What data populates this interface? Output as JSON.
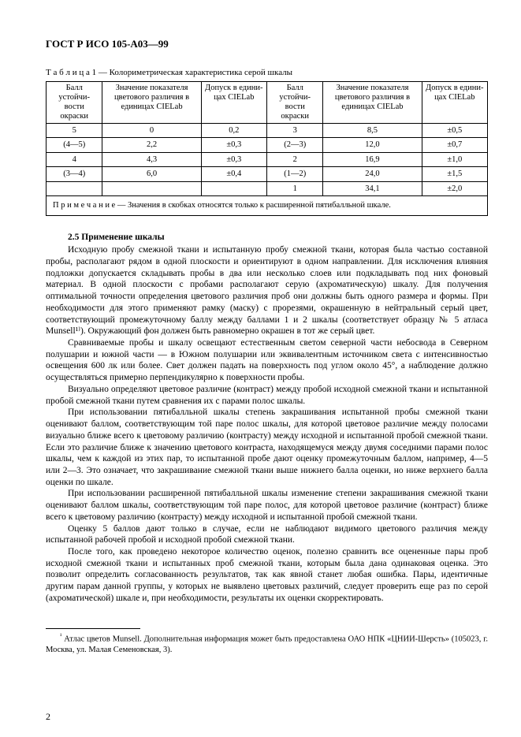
{
  "header": {
    "code": "ГОСТ Р ИСО 105-А03—99"
  },
  "table": {
    "caption_prefix": "Т а б л и ц а 1",
    "caption_dash": " — ",
    "caption_text": "Колориметрическая характеристика серой шкалы",
    "headers": {
      "c1": "Балл устойчи-\nвости окраски",
      "c2": "Значение показателя\nцветового различия в\nединицах CIELab",
      "c3": "Допуск в едини-\nцах CIELab",
      "c4": "Балл устойчи-\nвости окраски",
      "c5": "Значение показателя\nцветового различия в\nединицах CIELab",
      "c6": "Допуск в едини-\nцах CIELab"
    },
    "rows": [
      [
        "5",
        "0",
        "0,2",
        "3",
        "8,5",
        "±0,5"
      ],
      [
        "(4—5)",
        "2,2",
        "±0,3",
        "(2—3)",
        "12,0",
        "±0,7"
      ],
      [
        "4",
        "4,3",
        "±0,3",
        "2",
        "16,9",
        "±1,0"
      ],
      [
        "(3—4)",
        "6,0",
        "±0,4",
        "(1—2)",
        "24,0",
        "±1,5"
      ],
      [
        "",
        "",
        "",
        "1",
        "34,1",
        "±2,0"
      ]
    ],
    "note_prefix": "П р и м е ч а н и е",
    "note_text": " — Значения в скобках относятся только к расширенной пятибалльной шкале."
  },
  "section": {
    "title": "2.5 Применение шкалы"
  },
  "paragraphs": {
    "p1": "Исходную пробу смежной ткани и испытанную пробу смежной ткани, которая была частью составной пробы, располагают рядом в одной плоскости и ориентируют в одном направлении. Для исключения влияния подложки допускается складывать пробы в два или несколько слоев или подкладывать под них фоновый материал. В одной плоскости с пробами располагают серую (ахроматическую) шкалу. Для получения оптимальной точности определения цветового различия проб они должны быть одного размера и формы. При необходимости для этого применяют рамку (маску) с прорезями, окрашенную в нейтральный серый цвет, соответствующий промежуточному баллу между баллами 1 и 2 шкалы (соответствует образцу № 5 атласа Munsell¹⁾). Окружающий фон должен быть равномерно окрашен в тот же серый цвет.",
    "p2": "Сравниваемые пробы и шкалу освещают естественным светом северной части небосвода в Северном полушарии и южной части — в Южном полушарии или эквивалентным источником света с интенсивностью освещения 600 лк или более. Свет должен падать на поверхность под углом около 45°, а наблюдение должно осуществляться примерно перпендикулярно к поверхности пробы.",
    "p3": "Визуально определяют цветовое различие (контраст) между пробой исходной смежной ткани и испытанной пробой смежной ткани путем сравнения их с парами полос шкалы.",
    "p4": "При использовании пятибалльной шкалы степень закрашивания испытанной пробы смежной ткани оценивают баллом, соответствующим той паре полос шкалы, для которой цветовое различие между полосами визуально ближе всего к цветовому различию (контрасту) между исходной и испытанной пробой смежной ткани. Если это различие ближе к значению цветового контраста, находящемуся между двумя соседними парами полос шкалы, чем к каждой из этих пар, то испытанной пробе дают оценку промежуточным баллом, например, 4—5 или 2—3. Это означает, что закрашивание смежной ткани выше нижнего балла оценки, но ниже верхнего балла оценки по шкале.",
    "p5": "При использовании расширенной пятибалльной шкалы изменение степени закрашивания смежной ткани оценивают баллом шкалы, соответствующим той паре полос, для которой цветовое различие (контраст) ближе всего к цветовому различию (контрасту) между исходной и испытанной пробой смежной ткани.",
    "p6": "Оценку 5 баллов дают только в случае, если не наблюдают видимого цветового различия между испытанной рабочей пробой и исходной пробой смежной ткани.",
    "p7": "После того, как проведено некоторое количество оценок, полезно сравнить все оцененные пары проб исходной смежной ткани и испытанных проб смежной ткани, которым была дана одинаковая оценка. Это позволит определить согласованность результатов, так как явной станет любая ошибка. Пары, идентичные другим парам данной группы, у которых не выявлено цветовых различий, следует проверить еще раз по серой (ахроматической) шкале и, при необходимости, результаты их оценки скорректировать."
  },
  "footnote": {
    "marker": "¹",
    "text": " Атлас цветов Munsell. Дополнительная информация может быть предоставлена ОАО НПК «ЦНИИ-Шерсть» (105023, г. Москва, ул. Малая Семеновская, 3)."
  },
  "page_number": "2"
}
